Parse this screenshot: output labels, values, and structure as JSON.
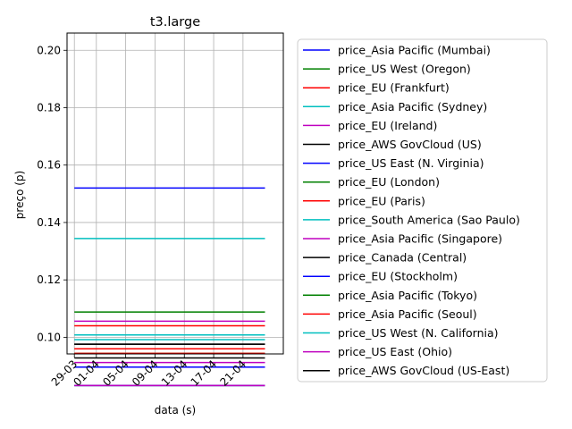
{
  "chart_data": {
    "type": "line",
    "title": "t3.large",
    "xlabel": "data (s)",
    "ylabel": "preço (p)",
    "x_start": "29-03",
    "x_end": "24-04",
    "x_ticks": [
      {
        "label": "29-03",
        "day": 0
      },
      {
        "label": "01-04",
        "day": 3
      },
      {
        "label": "05-04",
        "day": 7
      },
      {
        "label": "09-04",
        "day": 11
      },
      {
        "label": "13-04",
        "day": 15
      },
      {
        "label": "17-04",
        "day": 19
      },
      {
        "label": "21-04",
        "day": 23
      }
    ],
    "x_range_days": [
      -1,
      28.5
    ],
    "y_ticks": [
      0.1,
      0.12,
      0.14,
      0.16,
      0.18,
      0.2
    ],
    "ylim": [
      0.0942,
      0.206
    ],
    "grid": true,
    "legend_position": "outside-right",
    "series": [
      {
        "name": "price_Asia Pacific (Mumbai)",
        "color": "#0000ff",
        "value": 0.152
      },
      {
        "name": "price_US West (Oregon)",
        "color": "#008000",
        "value": 0.0832
      },
      {
        "name": "price_EU (Frankfurt)",
        "color": "#ff0000",
        "value": 0.096
      },
      {
        "name": "price_Asia Pacific (Sydney)",
        "color": "#00bfbf",
        "value": 0.1008
      },
      {
        "name": "price_EU (Ireland)",
        "color": "#bf00bf",
        "value": 0.0912
      },
      {
        "name": "price_AWS GovCloud (US)",
        "color": "#000000",
        "value": 0.0976
      },
      {
        "name": "price_US East (N. Virginia)",
        "color": "#0000ff",
        "value": 0.0832
      },
      {
        "name": "price_EU (London)",
        "color": "#008000",
        "value": 0.0944
      },
      {
        "name": "price_EU (Paris)",
        "color": "#ff0000",
        "value": 0.0944
      },
      {
        "name": "price_South America (Sao Paulo)",
        "color": "#00bfbf",
        "value": 0.1344
      },
      {
        "name": "price_Asia Pacific (Singapore)",
        "color": "#bf00bf",
        "value": 0.1056
      },
      {
        "name": "price_Canada (Central)",
        "color": "#000000",
        "value": 0.0928
      },
      {
        "name": "price_EU (Stockholm)",
        "color": "#0000ff",
        "value": 0.0896
      },
      {
        "name": "price_Asia Pacific (Tokyo)",
        "color": "#008000",
        "value": 0.1088
      },
      {
        "name": "price_Asia Pacific (Seoul)",
        "color": "#ff0000",
        "value": 0.104
      },
      {
        "name": "price_US West (N. California)",
        "color": "#00bfbf",
        "value": 0.0992
      },
      {
        "name": "price_US East (Ohio)",
        "color": "#bf00bf",
        "value": 0.0832
      },
      {
        "name": "price_AWS GovCloud (US-East)",
        "color": "#000000",
        "value": 0.0976
      }
    ]
  }
}
